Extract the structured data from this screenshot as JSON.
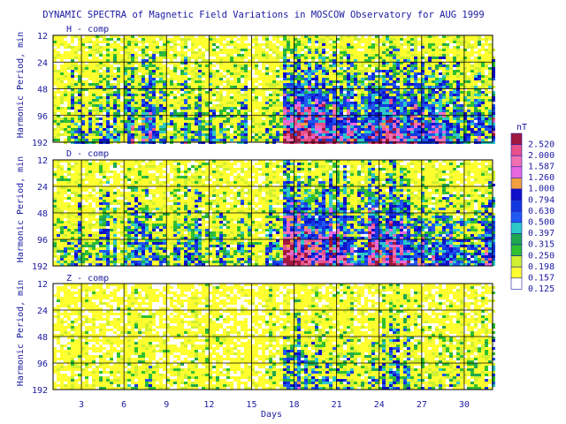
{
  "chart_data": {
    "type": "heatmap",
    "title": "DYNAMIC SPECTRA of Magnetic Field Variations in MOSCOW Observatory for AUG 1999",
    "xlabel": "Days",
    "ylabel": "Harmonic Period, min",
    "x_ticks": [
      "3",
      "6",
      "9",
      "12",
      "15",
      "18",
      "21",
      "24",
      "27",
      "30"
    ],
    "x_tick_values": [
      3,
      6,
      9,
      12,
      15,
      18,
      21,
      24,
      27,
      30
    ],
    "xlim": [
      1,
      32
    ],
    "y_ticks": [
      "12",
      "24",
      "48",
      "96",
      "192"
    ],
    "y_tick_values": [
      12,
      24,
      48,
      96,
      192
    ],
    "y_scale": "log",
    "legend_title": "nT",
    "legend_levels": [
      "2.520",
      "2.000",
      "1.587",
      "1.260",
      "1.000",
      "0.794",
      "0.630",
      "0.500",
      "0.397",
      "0.315",
      "0.250",
      "0.198",
      "0.157",
      "0.125"
    ],
    "legend_colors": [
      "#a01840",
      "#e8508a",
      "#f070b0",
      "#e868e0",
      "#f0a040",
      "#1010c8",
      "#1438e0",
      "#2058f0",
      "#2cc8c8",
      "#20a850",
      "#30c030",
      "#d0f030",
      "#ffff30",
      "#ffffff"
    ],
    "panels": [
      {
        "label": "H - comp",
        "activity": [
          0.3,
          0.45,
          0.35,
          0.55,
          0.4,
          0.6,
          0.65,
          0.45,
          0.4,
          0.55,
          0.45,
          0.4,
          0.35,
          0.4,
          0.35,
          0.5,
          0.95,
          0.95,
          0.9,
          0.85,
          0.75,
          0.65,
          0.85,
          0.9,
          0.8,
          0.75,
          0.7,
          0.65,
          0.6,
          0.6,
          0.7
        ]
      },
      {
        "label": "D - comp",
        "activity": [
          0.35,
          0.5,
          0.4,
          0.55,
          0.45,
          0.6,
          0.6,
          0.45,
          0.45,
          0.55,
          0.45,
          0.4,
          0.35,
          0.4,
          0.35,
          0.5,
          0.95,
          0.95,
          0.9,
          0.85,
          0.75,
          0.6,
          0.85,
          0.85,
          0.8,
          0.7,
          0.7,
          0.65,
          0.6,
          0.6,
          0.7
        ]
      },
      {
        "label": "Z - comp",
        "activity": [
          0.15,
          0.25,
          0.15,
          0.25,
          0.2,
          0.3,
          0.35,
          0.2,
          0.2,
          0.25,
          0.2,
          0.15,
          0.15,
          0.2,
          0.15,
          0.25,
          0.55,
          0.55,
          0.5,
          0.45,
          0.35,
          0.3,
          0.45,
          0.45,
          0.4,
          0.35,
          0.35,
          0.3,
          0.3,
          0.3,
          0.35
        ]
      }
    ]
  }
}
